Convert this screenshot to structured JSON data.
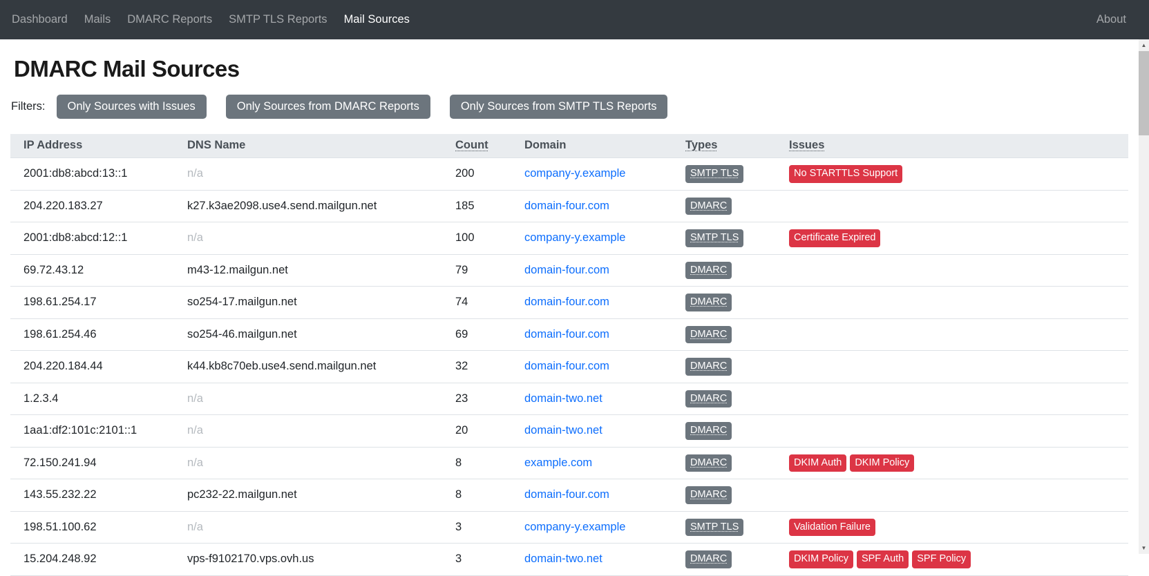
{
  "navbar": {
    "items": [
      {
        "label": "Dashboard",
        "active": false
      },
      {
        "label": "Mails",
        "active": false
      },
      {
        "label": "DMARC Reports",
        "active": false
      },
      {
        "label": "SMTP TLS Reports",
        "active": false
      },
      {
        "label": "Mail Sources",
        "active": true
      }
    ],
    "about": "About"
  },
  "page": {
    "title": "DMARC Mail Sources",
    "filters_label": "Filters:"
  },
  "filter_buttons": [
    "Only Sources with Issues",
    "Only Sources from DMARC Reports",
    "Only Sources from SMTP TLS Reports"
  ],
  "icons": {
    "scrollbar_up": "▲",
    "scrollbar_down": "▼"
  },
  "colors": {
    "navbar_bg": "#343a40",
    "link_blue": "#0d6efd",
    "type_badge_bg": "#6c757d",
    "issue_badge_bg": "#dc3545",
    "filter_button_bg": "#6c757d",
    "table_header_bg": "#e9ecef"
  },
  "table": {
    "columns": {
      "ip": "IP Address",
      "dns": "DNS Name",
      "count": "Count",
      "domain": "Domain",
      "types": "Types",
      "issues": "Issues"
    },
    "na_text": "n/a",
    "rows": [
      {
        "ip": "2001:db8:abcd:13::1",
        "dns": null,
        "count": "200",
        "domain": "company-y.example",
        "types": [
          "SMTP TLS"
        ],
        "issues": [
          "No STARTTLS Support"
        ]
      },
      {
        "ip": "204.220.183.27",
        "dns": "k27.k3ae2098.use4.send.mailgun.net",
        "count": "185",
        "domain": "domain-four.com",
        "types": [
          "DMARC"
        ],
        "issues": []
      },
      {
        "ip": "2001:db8:abcd:12::1",
        "dns": null,
        "count": "100",
        "domain": "company-y.example",
        "types": [
          "SMTP TLS"
        ],
        "issues": [
          "Certificate Expired"
        ]
      },
      {
        "ip": "69.72.43.12",
        "dns": "m43-12.mailgun.net",
        "count": "79",
        "domain": "domain-four.com",
        "types": [
          "DMARC"
        ],
        "issues": []
      },
      {
        "ip": "198.61.254.17",
        "dns": "so254-17.mailgun.net",
        "count": "74",
        "domain": "domain-four.com",
        "types": [
          "DMARC"
        ],
        "issues": []
      },
      {
        "ip": "198.61.254.46",
        "dns": "so254-46.mailgun.net",
        "count": "69",
        "domain": "domain-four.com",
        "types": [
          "DMARC"
        ],
        "issues": []
      },
      {
        "ip": "204.220.184.44",
        "dns": "k44.kb8c70eb.use4.send.mailgun.net",
        "count": "32",
        "domain": "domain-four.com",
        "types": [
          "DMARC"
        ],
        "issues": []
      },
      {
        "ip": "1.2.3.4",
        "dns": null,
        "count": "23",
        "domain": "domain-two.net",
        "types": [
          "DMARC"
        ],
        "issues": []
      },
      {
        "ip": "1aa1:df2:101c:2101::1",
        "dns": null,
        "count": "20",
        "domain": "domain-two.net",
        "types": [
          "DMARC"
        ],
        "issues": []
      },
      {
        "ip": "72.150.241.94",
        "dns": null,
        "count": "8",
        "domain": "example.com",
        "types": [
          "DMARC"
        ],
        "issues": [
          "DKIM Auth",
          "DKIM Policy"
        ]
      },
      {
        "ip": "143.55.232.22",
        "dns": "pc232-22.mailgun.net",
        "count": "8",
        "domain": "domain-four.com",
        "types": [
          "DMARC"
        ],
        "issues": []
      },
      {
        "ip": "198.51.100.62",
        "dns": null,
        "count": "3",
        "domain": "company-y.example",
        "types": [
          "SMTP TLS"
        ],
        "issues": [
          "Validation Failure"
        ]
      },
      {
        "ip": "15.204.248.92",
        "dns": "vps-f9102170.vps.ovh.us",
        "count": "3",
        "domain": "domain-two.net",
        "types": [
          "DMARC"
        ],
        "issues": [
          "DKIM Policy",
          "SPF Auth",
          "SPF Policy"
        ]
      }
    ]
  }
}
